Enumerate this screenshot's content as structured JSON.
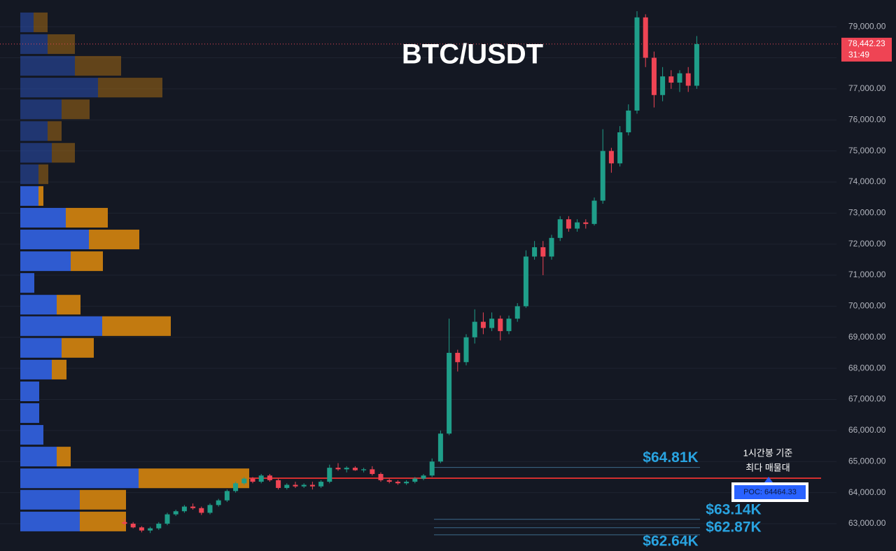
{
  "chart_data": {
    "type": "candlestick",
    "title": "BTC/USDT",
    "up_color": "#1f9e89",
    "down_color": "#ef4454",
    "grid": true,
    "ylim": [
      62120,
      79860
    ],
    "yticks": [
      {
        "value": 63000,
        "label": "63,000.00"
      },
      {
        "value": 64000,
        "label": "64,000.00"
      },
      {
        "value": 65000,
        "label": "65,000.00"
      },
      {
        "value": 66000,
        "label": "66,000.00"
      },
      {
        "value": 67000,
        "label": "67,000.00"
      },
      {
        "value": 68000,
        "label": "68,000.00"
      },
      {
        "value": 69000,
        "label": "69,000.00"
      },
      {
        "value": 70000,
        "label": "70,000.00"
      },
      {
        "value": 71000,
        "label": "71,000.00"
      },
      {
        "value": 72000,
        "label": "72,000.00"
      },
      {
        "value": 73000,
        "label": "73,000.00"
      },
      {
        "value": 74000,
        "label": "74,000.00"
      },
      {
        "value": 75000,
        "label": "75,000.00"
      },
      {
        "value": 76000,
        "label": "76,000.00"
      },
      {
        "value": 77000,
        "label": "77,000.00"
      },
      {
        "value": 78000,
        "label": "78,000.00"
      },
      {
        "value": 79000,
        "label": "79,000.00"
      }
    ],
    "open": [
      63050,
      63000,
      62880,
      62780,
      62850,
      63000,
      63300,
      63400,
      63550,
      63500,
      63350,
      63600,
      63750,
      64050,
      64300,
      64450,
      64350,
      64550,
      64400,
      64150,
      64250,
      64200,
      64250,
      64200,
      64350,
      64800,
      64750,
      64800,
      64720,
      64750,
      64600,
      64400,
      64350,
      64300,
      64350,
      64450,
      64550,
      65000,
      65900,
      68500,
      68200,
      69000,
      69500,
      69300,
      69600,
      69200,
      69600,
      70000,
      71600,
      71900,
      71600,
      72200,
      72800,
      72500,
      72700,
      72650,
      73400,
      75000,
      74600,
      75600,
      76300,
      79300,
      78000,
      76800,
      77400,
      77200,
      77500,
      77100
    ],
    "high": [
      63150,
      63050,
      62920,
      62900,
      63050,
      63350,
      63450,
      63600,
      63650,
      63550,
      63650,
      63800,
      64100,
      64350,
      64500,
      64500,
      64600,
      64600,
      64450,
      64300,
      64350,
      64300,
      64350,
      64400,
      64900,
      64950,
      64850,
      64850,
      64800,
      64850,
      64650,
      64450,
      64400,
      64400,
      64500,
      64600,
      65100,
      66000,
      69600,
      68600,
      69100,
      69900,
      69800,
      69800,
      69700,
      69700,
      70100,
      71800,
      72100,
      72100,
      72300,
      72900,
      72900,
      72800,
      72800,
      73500,
      75700,
      75100,
      75800,
      76500,
      79500,
      79400,
      78200,
      77700,
      77600,
      77600,
      77700,
      78700
    ],
    "low": [
      62950,
      62850,
      62720,
      62700,
      62800,
      62950,
      63250,
      63350,
      63450,
      63280,
      63300,
      63550,
      63700,
      64000,
      64250,
      64300,
      64300,
      64350,
      64100,
      64100,
      64150,
      64150,
      64100,
      64150,
      64300,
      64700,
      64650,
      64700,
      64650,
      64550,
      64350,
      64300,
      64250,
      64250,
      64300,
      64400,
      64500,
      64950,
      65850,
      67900,
      68100,
      68800,
      69100,
      69200,
      68900,
      69100,
      69500,
      69950,
      71500,
      71000,
      71500,
      72100,
      72400,
      72400,
      72500,
      72600,
      73300,
      74300,
      74500,
      75500,
      76200,
      77700,
      76400,
      76600,
      77000,
      76900,
      76900,
      77000
    ],
    "close": [
      63000,
      62880,
      62780,
      62850,
      63000,
      63300,
      63400,
      63550,
      63500,
      63350,
      63600,
      63750,
      64050,
      64300,
      64450,
      64350,
      64550,
      64400,
      64150,
      64250,
      64200,
      64250,
      64200,
      64350,
      64800,
      64750,
      64800,
      64720,
      64750,
      64600,
      64400,
      64350,
      64300,
      64350,
      64450,
      64550,
      65000,
      65900,
      68500,
      68200,
      69000,
      69500,
      69300,
      69600,
      69200,
      69600,
      70000,
      71600,
      71900,
      71600,
      72200,
      72800,
      72500,
      72700,
      72650,
      73400,
      75000,
      74600,
      75600,
      76300,
      79300,
      78000,
      76800,
      77400,
      77200,
      77500,
      77100,
      78442.23
    ],
    "last_price": {
      "value": 78442.23,
      "label": "78,442.23"
    },
    "countdown": "31:49",
    "levels": [
      {
        "value": 64810,
        "label": "$64.81K"
      },
      {
        "value": 63140,
        "label": "$63.14K"
      },
      {
        "value": 62870,
        "label": "$62.87K"
      },
      {
        "value": 62640,
        "label": "$62.64K"
      }
    ],
    "poc": {
      "value": 64464.33,
      "label": "POC: 64464.33"
    },
    "poc_note": [
      "1시간봉 기준",
      "최다 매물대"
    ],
    "volume_profile": {
      "buy_color": "#2f5bd0",
      "sell_color": "#c27a10",
      "levels": [
        79140,
        78440,
        77740,
        77040,
        76340,
        75640,
        74940,
        74250,
        73550,
        72850,
        72150,
        71450,
        70750,
        70050,
        69360,
        68660,
        67960,
        67260,
        66560,
        65860,
        65160,
        64460,
        63770,
        63070
      ],
      "buy": [
        19,
        39,
        78,
        111,
        59,
        39,
        45,
        26,
        26,
        65,
        98,
        72,
        20,
        52,
        117,
        59,
        45,
        27,
        27,
        33,
        52,
        169,
        85,
        85
      ],
      "sell": [
        20,
        39,
        66,
        92,
        40,
        20,
        33,
        14,
        7,
        60,
        72,
        46,
        0,
        34,
        98,
        46,
        21,
        0,
        0,
        0,
        20,
        158,
        66,
        66
      ]
    }
  }
}
